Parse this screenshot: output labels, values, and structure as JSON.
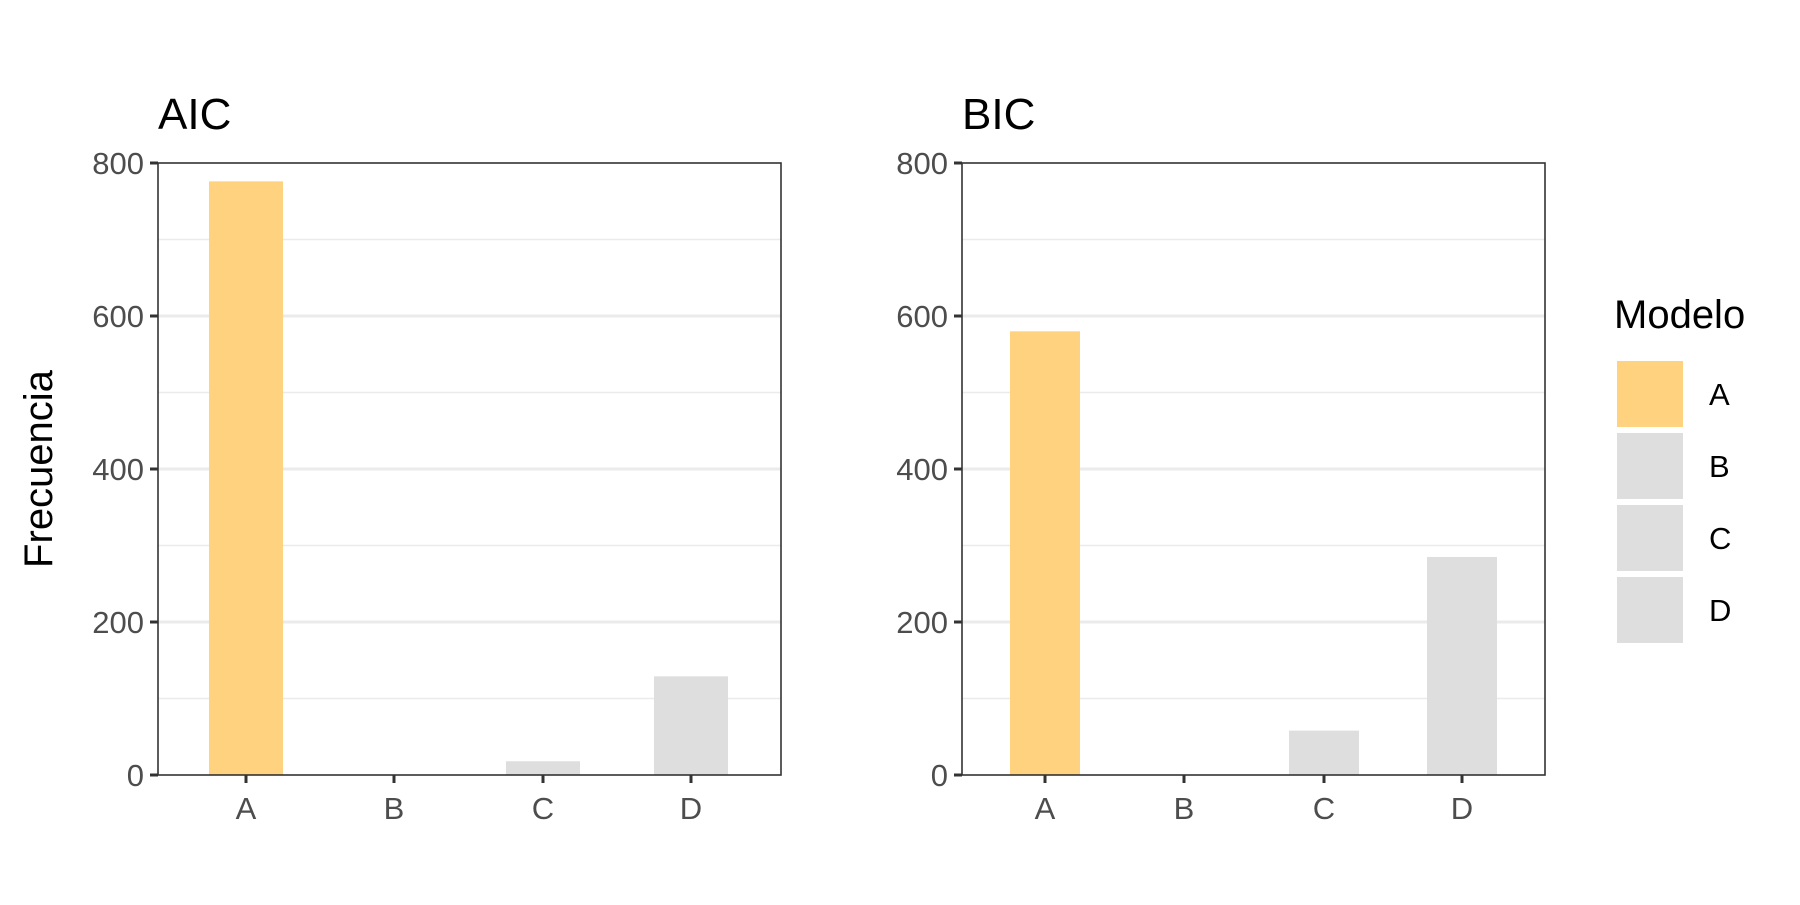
{
  "chart_data": {
    "type": "bar",
    "ylabel": "Frecuencia",
    "ylim": [
      0,
      800
    ],
    "y_ticks": [
      0,
      200,
      400,
      600,
      800
    ],
    "grid": true,
    "legend": {
      "title": "Modelo",
      "placement": "right",
      "entries": [
        {
          "label": "A",
          "color": "#FFD27F"
        },
        {
          "label": "B",
          "color": "#DEDEDE"
        },
        {
          "label": "C",
          "color": "#DEDEDE"
        },
        {
          "label": "D",
          "color": "#DEDEDE"
        }
      ]
    },
    "panels": [
      {
        "title": "AIC",
        "categories": [
          "A",
          "B",
          "C",
          "D"
        ],
        "values": [
          776,
          0,
          18,
          129
        ]
      },
      {
        "title": "BIC",
        "categories": [
          "A",
          "B",
          "C",
          "D"
        ],
        "values": [
          580,
          0,
          58,
          285
        ]
      }
    ]
  }
}
